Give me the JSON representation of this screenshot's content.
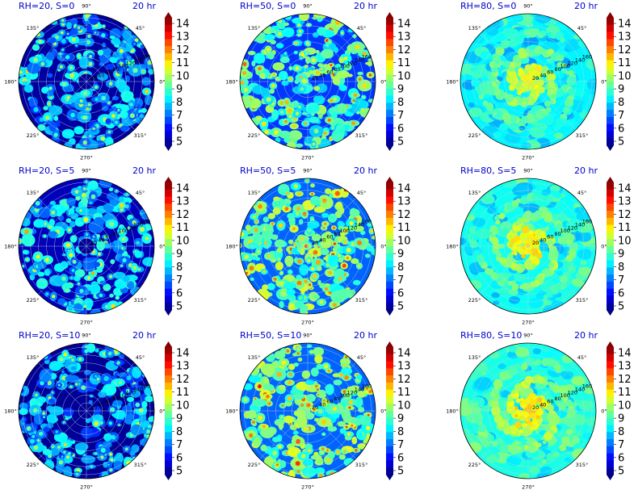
{
  "figure": {
    "colormap": "jet",
    "color_levels": [
      5,
      6,
      7,
      8,
      9,
      10,
      11,
      12,
      13,
      14
    ],
    "colors": {
      "title": "#0000cc",
      "grid": "#bcd0e0",
      "jet": [
        "#00007f",
        "#0000ff",
        "#007fff",
        "#00ffff",
        "#7fff7f",
        "#ffff00",
        "#ff7f00",
        "#ff0000",
        "#7f0000"
      ]
    }
  },
  "chart_data": [
    {
      "type": "polar-contour",
      "title_left": "RH=20, S=0",
      "title_right": "20 hr",
      "angle_labels": [
        "90°",
        "45°",
        "0°",
        "315°",
        "270°",
        "225°",
        "180°",
        "135°"
      ],
      "radial_ticks": [
        "20",
        "40",
        "60",
        "80",
        "100",
        "120",
        "140",
        "160"
      ],
      "colorbar_ticks": [
        "5",
        "6",
        "7",
        "8",
        "9",
        "10",
        "11",
        "12",
        "13",
        "14"
      ],
      "colorbar_range": [
        5,
        14
      ],
      "background_level": 5.3,
      "structure": "scattered-cells"
    },
    {
      "type": "polar-contour",
      "title_left": "RH=50, S=0",
      "title_right": "20 hr",
      "angle_labels": [
        "90°",
        "45°",
        "0°",
        "315°",
        "270°",
        "225°",
        "180°",
        "135°"
      ],
      "radial_ticks": [
        "20",
        "40",
        "60",
        "80",
        "100",
        "120",
        "140",
        "160"
      ],
      "colorbar_ticks": [
        "5",
        "6",
        "7",
        "8",
        "9",
        "10",
        "11",
        "12",
        "13",
        "14"
      ],
      "colorbar_range": [
        5,
        14
      ],
      "background_level": 6.6,
      "structure": "scattered-cells"
    },
    {
      "type": "polar-contour",
      "title_left": "RH=80, S=0",
      "title_right": "20 hr",
      "angle_labels": [
        "90°",
        "45°",
        "0°",
        "315°",
        "270°",
        "225°",
        "180°",
        "135°"
      ],
      "radial_ticks": [
        "20",
        "40",
        "60",
        "80",
        "100",
        "120",
        "140",
        "160"
      ],
      "colorbar_ticks": [
        "5",
        "6",
        "7",
        "8",
        "9",
        "10",
        "11",
        "12",
        "13",
        "14"
      ],
      "colorbar_range": [
        5,
        14
      ],
      "background_level": 8.3,
      "structure": "organized-spiral"
    },
    {
      "type": "polar-contour",
      "title_left": "RH=20, S=5",
      "title_right": "20 hr",
      "angle_labels": [
        "90°",
        "45°",
        "0°",
        "315°",
        "270°",
        "225°",
        "180°",
        "135°"
      ],
      "radial_ticks": [
        "20",
        "40",
        "60",
        "80",
        "100",
        "120",
        "140",
        "160"
      ],
      "colorbar_ticks": [
        "5",
        "6",
        "7",
        "8",
        "9",
        "10",
        "11",
        "12",
        "13",
        "14"
      ],
      "colorbar_range": [
        5,
        14
      ],
      "background_level": 5.5,
      "structure": "scattered-cells"
    },
    {
      "type": "polar-contour",
      "title_left": "RH=50, S=5",
      "title_right": "20 hr",
      "angle_labels": [
        "90°",
        "45°",
        "0°",
        "315°",
        "270°",
        "225°",
        "180°",
        "135°"
      ],
      "radial_ticks": [
        "20",
        "40",
        "60",
        "80",
        "100",
        "120",
        "140",
        "160"
      ],
      "colorbar_ticks": [
        "5",
        "6",
        "7",
        "8",
        "9",
        "10",
        "11",
        "12",
        "13",
        "14"
      ],
      "colorbar_range": [
        5,
        14
      ],
      "background_level": 7.0,
      "structure": "scattered-cells"
    },
    {
      "type": "polar-contour",
      "title_left": "RH=80, S=5",
      "title_right": "20 hr",
      "angle_labels": [
        "90°",
        "45°",
        "0°",
        "315°",
        "270°",
        "225°",
        "180°",
        "135°"
      ],
      "radial_ticks": [
        "20",
        "40",
        "60",
        "80",
        "100",
        "120",
        "140",
        "160"
      ],
      "colorbar_ticks": [
        "5",
        "6",
        "7",
        "8",
        "9",
        "10",
        "11",
        "12",
        "13",
        "14"
      ],
      "colorbar_range": [
        5,
        14
      ],
      "background_level": 8.5,
      "structure": "organized-spiral"
    },
    {
      "type": "polar-contour",
      "title_left": "RH=20, S=10",
      "title_right": "20 hr",
      "angle_labels": [
        "90°",
        "45°",
        "0°",
        "315°",
        "270°",
        "225°",
        "180°",
        "135°"
      ],
      "radial_ticks": [
        "20",
        "40",
        "60",
        "80",
        "100",
        "120",
        "140",
        "160"
      ],
      "colorbar_ticks": [
        "5",
        "6",
        "7",
        "8",
        "9",
        "10",
        "11",
        "12",
        "13",
        "14"
      ],
      "colorbar_range": [
        5,
        14
      ],
      "background_level": 5.2,
      "structure": "scattered-cells"
    },
    {
      "type": "polar-contour",
      "title_left": "RH=50, S=10",
      "title_right": "20 hr",
      "angle_labels": [
        "90°",
        "45°",
        "0°",
        "315°",
        "270°",
        "225°",
        "180°",
        "135°"
      ],
      "radial_ticks": [
        "20",
        "40",
        "60",
        "80",
        "100",
        "120",
        "140",
        "160"
      ],
      "colorbar_ticks": [
        "5",
        "6",
        "7",
        "8",
        "9",
        "10",
        "11",
        "12",
        "13",
        "14"
      ],
      "colorbar_range": [
        5,
        14
      ],
      "background_level": 7.0,
      "structure": "scattered-cells"
    },
    {
      "type": "polar-contour",
      "title_left": "RH=80, S=10",
      "title_right": "20 hr",
      "angle_labels": [
        "90°",
        "45°",
        "0°",
        "315°",
        "270°",
        "225°",
        "180°",
        "135°"
      ],
      "radial_ticks": [
        "20",
        "40",
        "60",
        "80",
        "100",
        "120",
        "140",
        "160"
      ],
      "colorbar_ticks": [
        "5",
        "6",
        "7",
        "8",
        "9",
        "10",
        "11",
        "12",
        "13",
        "14"
      ],
      "colorbar_range": [
        5,
        14
      ],
      "background_level": 8.6,
      "structure": "organized-spiral"
    }
  ]
}
